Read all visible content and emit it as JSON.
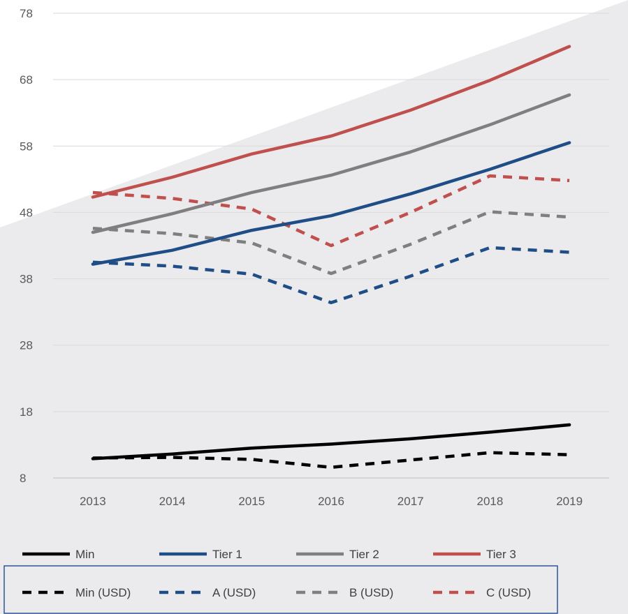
{
  "chart_data": {
    "type": "line",
    "title": "",
    "xlabel": "",
    "ylabel": "",
    "x": [
      "2013",
      "2014",
      "2015",
      "2016",
      "2017",
      "2018",
      "2019"
    ],
    "ylim": [
      8,
      78
    ],
    "yticks": [
      "78",
      "68",
      "58",
      "48",
      "38",
      "28",
      "18",
      "8"
    ],
    "ytick_values": [
      78,
      68,
      58,
      48,
      38,
      28,
      18,
      8
    ],
    "grid": true,
    "legend_position": "bottom",
    "series": [
      {
        "name": "Min",
        "color": "#000000",
        "dash": "solid",
        "values": [
          10.9,
          11.6,
          12.5,
          13.1,
          13.9,
          14.9,
          16.0
        ]
      },
      {
        "name": "Tier 1",
        "color": "#1f4e87",
        "dash": "solid",
        "values": [
          40.2,
          42.3,
          45.3,
          47.5,
          50.8,
          54.5,
          58.5
        ]
      },
      {
        "name": "Tier 2",
        "color": "#7f7f7f",
        "dash": "solid",
        "values": [
          45.0,
          47.8,
          51.0,
          53.6,
          57.1,
          61.2,
          65.7
        ]
      },
      {
        "name": "Tier 3",
        "color": "#c0504d",
        "dash": "solid",
        "values": [
          50.3,
          53.3,
          56.8,
          59.5,
          63.4,
          67.9,
          73.0
        ]
      },
      {
        "name": "Min (USD)",
        "color": "#000000",
        "dash": "dashed",
        "values": [
          11.0,
          11.1,
          10.8,
          9.6,
          10.7,
          11.8,
          11.5
        ]
      },
      {
        "name": "A (USD)",
        "color": "#1f4e87",
        "dash": "dashed",
        "values": [
          40.5,
          39.9,
          38.7,
          34.4,
          38.4,
          42.7,
          42.0
        ]
      },
      {
        "name": "B (USD)",
        "color": "#7f7f7f",
        "dash": "dashed",
        "values": [
          45.6,
          44.8,
          43.4,
          38.8,
          43.2,
          48.1,
          47.3
        ]
      },
      {
        "name": "C (USD)",
        "color": "#c0504d",
        "dash": "dashed",
        "values": [
          51.0,
          50.1,
          48.5,
          43.0,
          48.0,
          53.5,
          52.8
        ]
      }
    ]
  }
}
